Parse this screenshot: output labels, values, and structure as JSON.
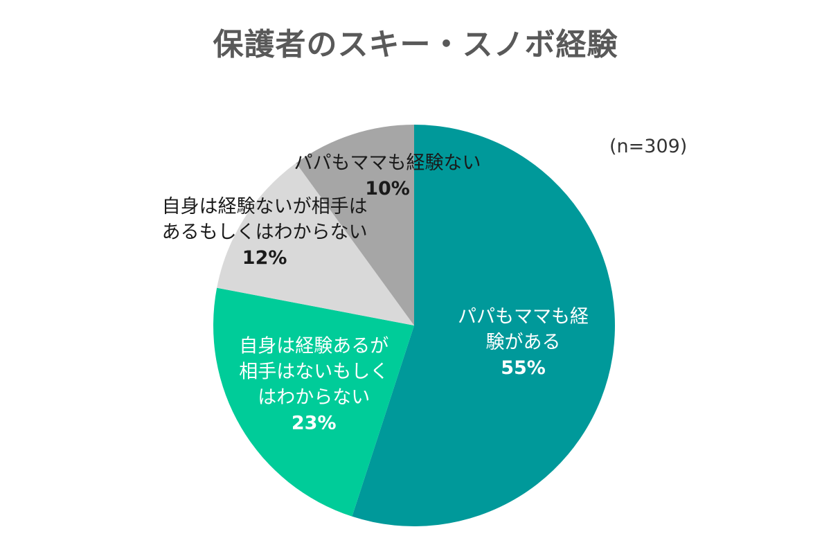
{
  "chart_data": {
    "type": "pie",
    "title": "保護者のスキー・スノボ経験",
    "note": "(n=309)",
    "unit": "%",
    "start_angle_deg": 0,
    "direction": "clockwise",
    "slices": [
      {
        "label_lines": [
          "パパもママも経",
          "験がある"
        ],
        "value": 55,
        "value_label": "55%",
        "color": "#00999a",
        "text_color": "#ffffff"
      },
      {
        "label_lines": [
          "自身は経験あるが",
          "相手はないもしく",
          "はわからない"
        ],
        "value": 23,
        "value_label": "23%",
        "color": "#00cc99",
        "text_color": "#ffffff"
      },
      {
        "label_lines": [
          "自身は経験ないが相手は",
          "あるもしくはわからない"
        ],
        "value": 12,
        "value_label": "12%",
        "color": "#d9d9d9",
        "text_color": "#1a1a1a"
      },
      {
        "label_lines": [
          "パパもママも経験ない"
        ],
        "value": 10,
        "value_label": "10%",
        "color": "#a6a6a6",
        "text_color": "#1a1a1a"
      }
    ]
  }
}
